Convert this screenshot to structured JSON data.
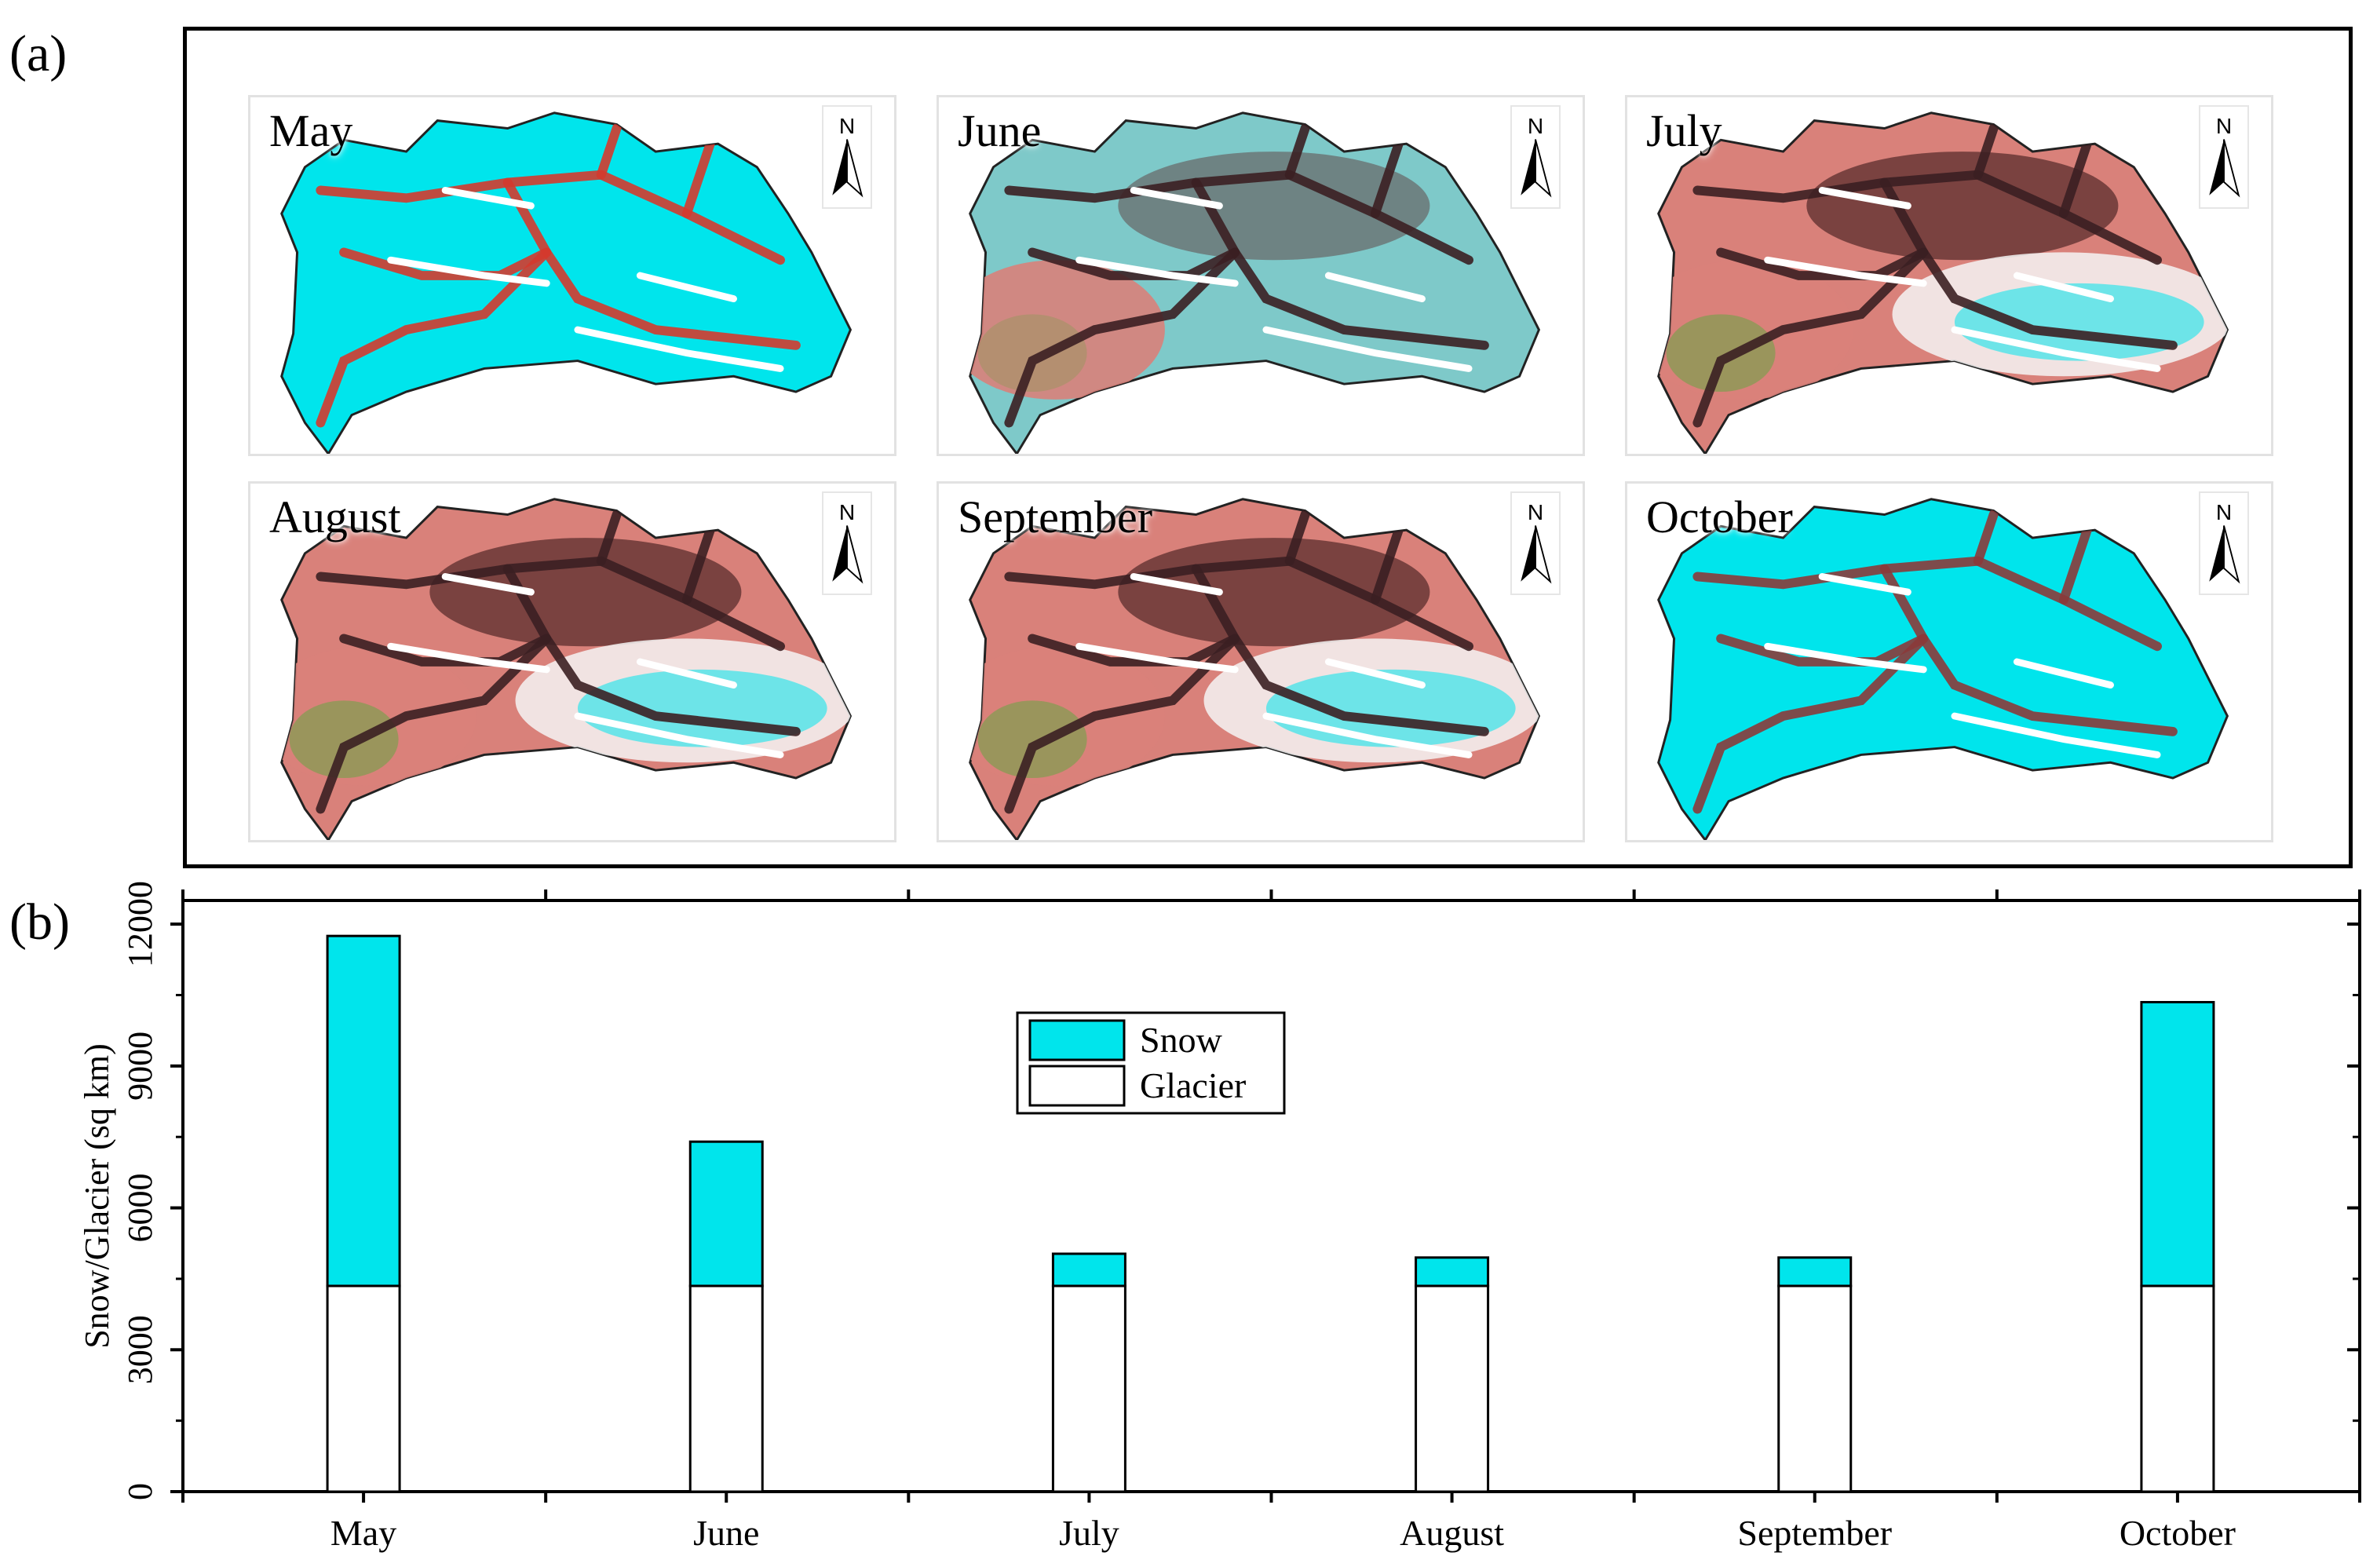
{
  "panel_labels": {
    "a": "(a)",
    "b": "(b)"
  },
  "maps": [
    {
      "month": "May",
      "north": "N",
      "snow_level": "high"
    },
    {
      "month": "June",
      "north": "N",
      "snow_level": "medium"
    },
    {
      "month": "July",
      "north": "N",
      "snow_level": "low"
    },
    {
      "month": "August",
      "north": "N",
      "snow_level": "low"
    },
    {
      "month": "September",
      "north": "N",
      "snow_level": "low"
    },
    {
      "month": "October",
      "north": "N",
      "snow_level": "high"
    }
  ],
  "colors": {
    "snow": "#00e5ec",
    "glacier": "#ffffff",
    "terrain": "#d9817a",
    "terrain_dark": "#5a2e2e",
    "vegetation": "#8a9a55",
    "red_valley": "#d43a2e"
  },
  "chart_data": {
    "type": "bar",
    "stacked": true,
    "categories": [
      "May",
      "June",
      "July",
      "August",
      "September",
      "October"
    ],
    "series": [
      {
        "name": "Glacier",
        "color": "#ffffff",
        "values": [
          4350,
          4350,
          4350,
          4350,
          4350,
          4350
        ]
      },
      {
        "name": "Snow",
        "color": "#00e5ec",
        "values": [
          7400,
          3050,
          680,
          600,
          600,
          6000
        ]
      }
    ],
    "ylabel": "Snow/Glacier (sq km)",
    "xlabel": "",
    "ylim": [
      0,
      12500
    ],
    "yticks": [
      0,
      3000,
      6000,
      9000,
      12000
    ],
    "ytick_labels": [
      "0",
      "3000",
      "6000",
      "9000",
      "12000"
    ],
    "legend": {
      "position": "upper-center",
      "entries": [
        "Snow",
        "Glacier"
      ]
    }
  }
}
